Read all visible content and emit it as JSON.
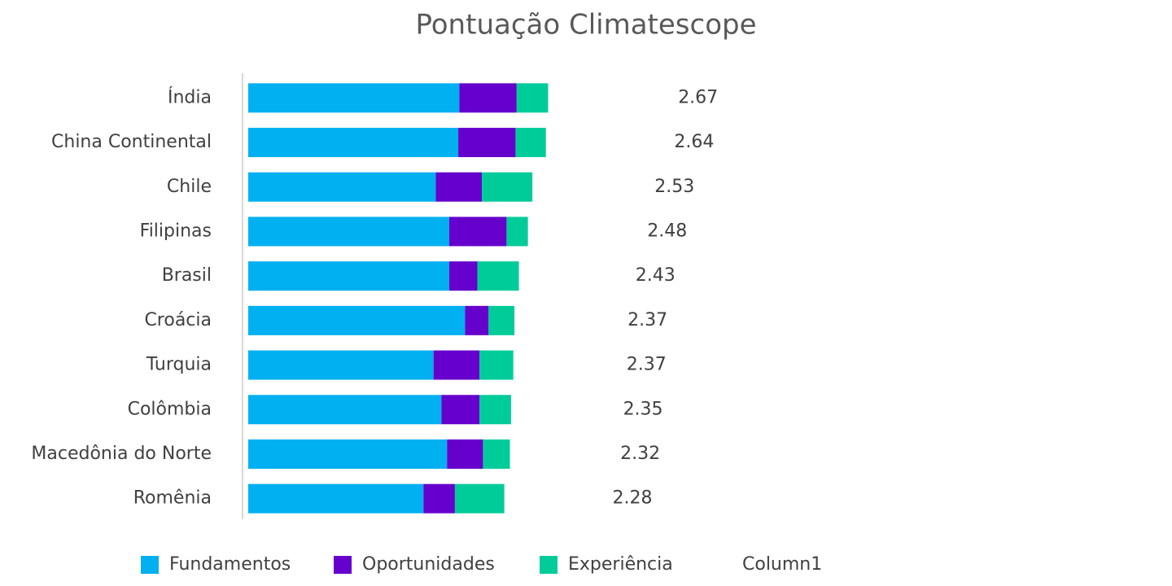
{
  "chart_data": {
    "type": "stacked-barh",
    "title": "Pontuação Climatescope",
    "categories": [
      "Índia",
      "China Continental",
      "Chile",
      "Filipinas",
      "Brasil",
      "Croácia",
      "Turquia",
      "Colômbia",
      "Macedônia do Norte",
      "Romênia"
    ],
    "series": [
      {
        "name": "Fundamentos",
        "color": "#00b0f0",
        "values": [
          1.88,
          1.87,
          1.67,
          1.79,
          1.79,
          1.93,
          1.65,
          1.72,
          1.77,
          1.56
        ]
      },
      {
        "name": "Oportunidades",
        "color": "#6600cc",
        "values": [
          0.51,
          0.51,
          0.41,
          0.51,
          0.25,
          0.21,
          0.41,
          0.34,
          0.32,
          0.28
        ]
      },
      {
        "name": "Experiência",
        "color": "#00cc99",
        "values": [
          0.28,
          0.27,
          0.45,
          0.19,
          0.37,
          0.23,
          0.3,
          0.28,
          0.24,
          0.44
        ]
      },
      {
        "name": "Column1",
        "values": [
          2.67,
          2.64,
          2.53,
          2.48,
          2.43,
          2.37,
          2.37,
          2.35,
          2.32,
          2.28
        ]
      }
    ]
  }
}
